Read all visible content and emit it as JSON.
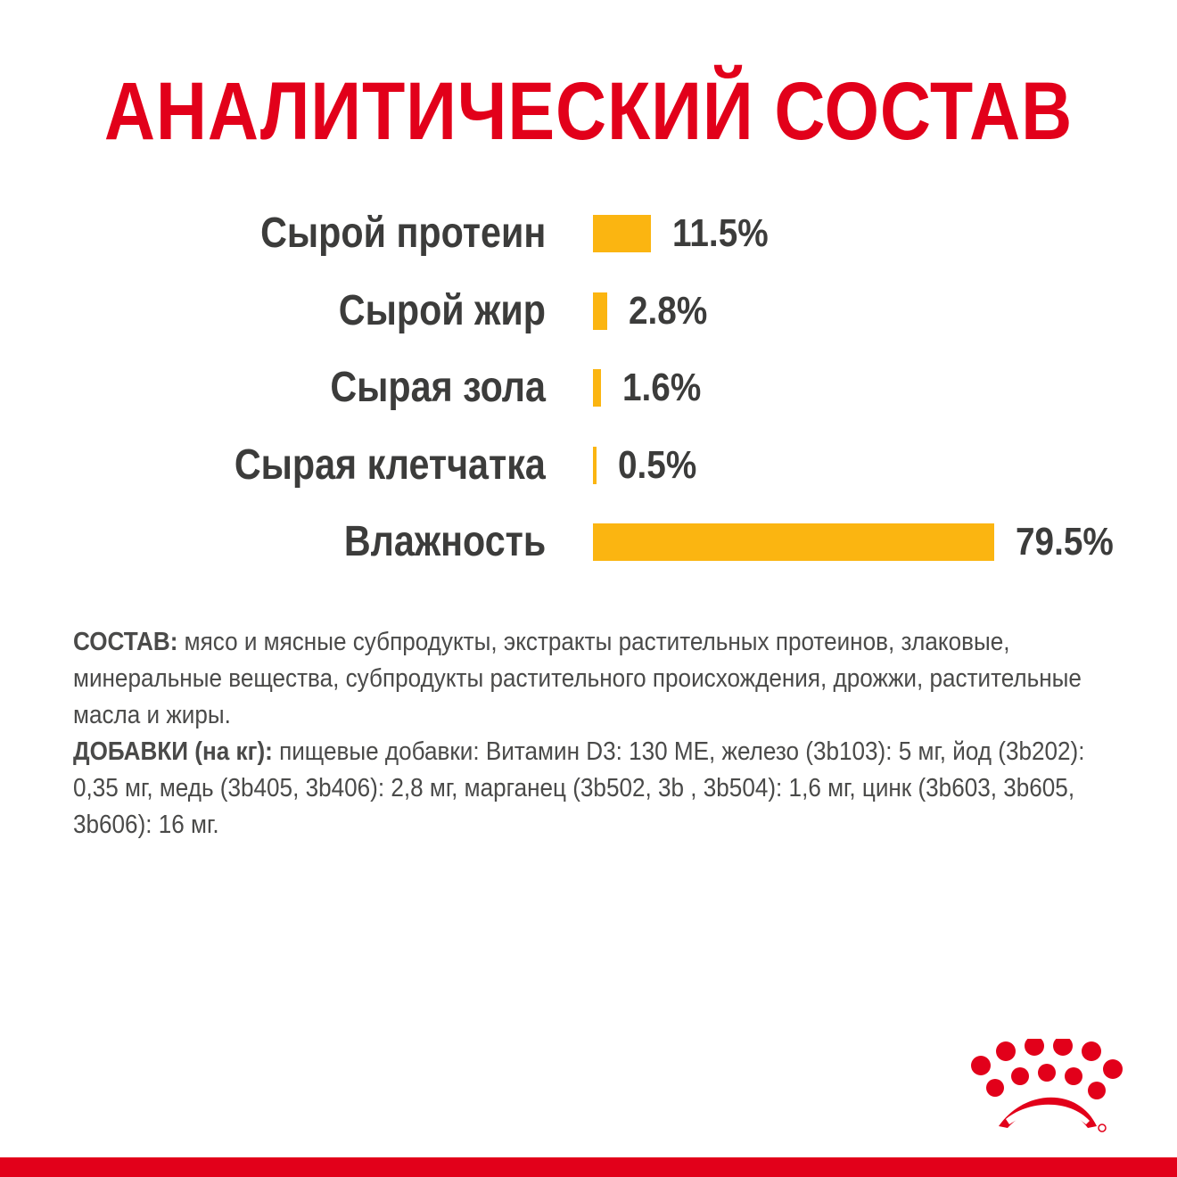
{
  "header": {
    "title": "АНАЛИТИЧЕСКИЙ СОСТАВ"
  },
  "colors": {
    "accent": "#e2001a",
    "bar": "#fbb511",
    "text": "#3c3c3b"
  },
  "chart_data": {
    "type": "bar",
    "orientation": "horizontal",
    "categories": [
      "Сырой протеин",
      "Сырой жир",
      "Сырая зола",
      "Сырая клетчатка",
      "Влажность"
    ],
    "values": [
      11.5,
      2.8,
      1.6,
      0.5,
      79.5
    ],
    "value_labels": [
      "11.5%",
      "2.8%",
      "1.6%",
      "0.5%",
      "79.5%"
    ],
    "title": "АНАЛИТИЧЕСКИЙ СОСТАВ",
    "xlabel": "",
    "ylabel": "",
    "grid": false,
    "legend": "none"
  },
  "composition": {
    "label": "СОСТАВ:",
    "text": " мясо и мясные субпродукты, экстракты растительных протеинов, злаковые, минеральные вещества, субпродукты растительного происхождения, дрожжи, растительные масла и жиры."
  },
  "additives": {
    "label": "ДОБАВКИ (на кг):",
    "text": " пищевые добавки: Витамин D3: 130 МЕ, железо (3b103): 5 мг, йод (3b202): 0,35 мг, медь (3b405, 3b406): 2,8 мг, марганец (3b502, 3b , 3b504): 1,6 мг, цинк (3b603, 3b605, 3b606): 16 мг."
  },
  "logo": {
    "icon": "crown-logo-icon"
  }
}
